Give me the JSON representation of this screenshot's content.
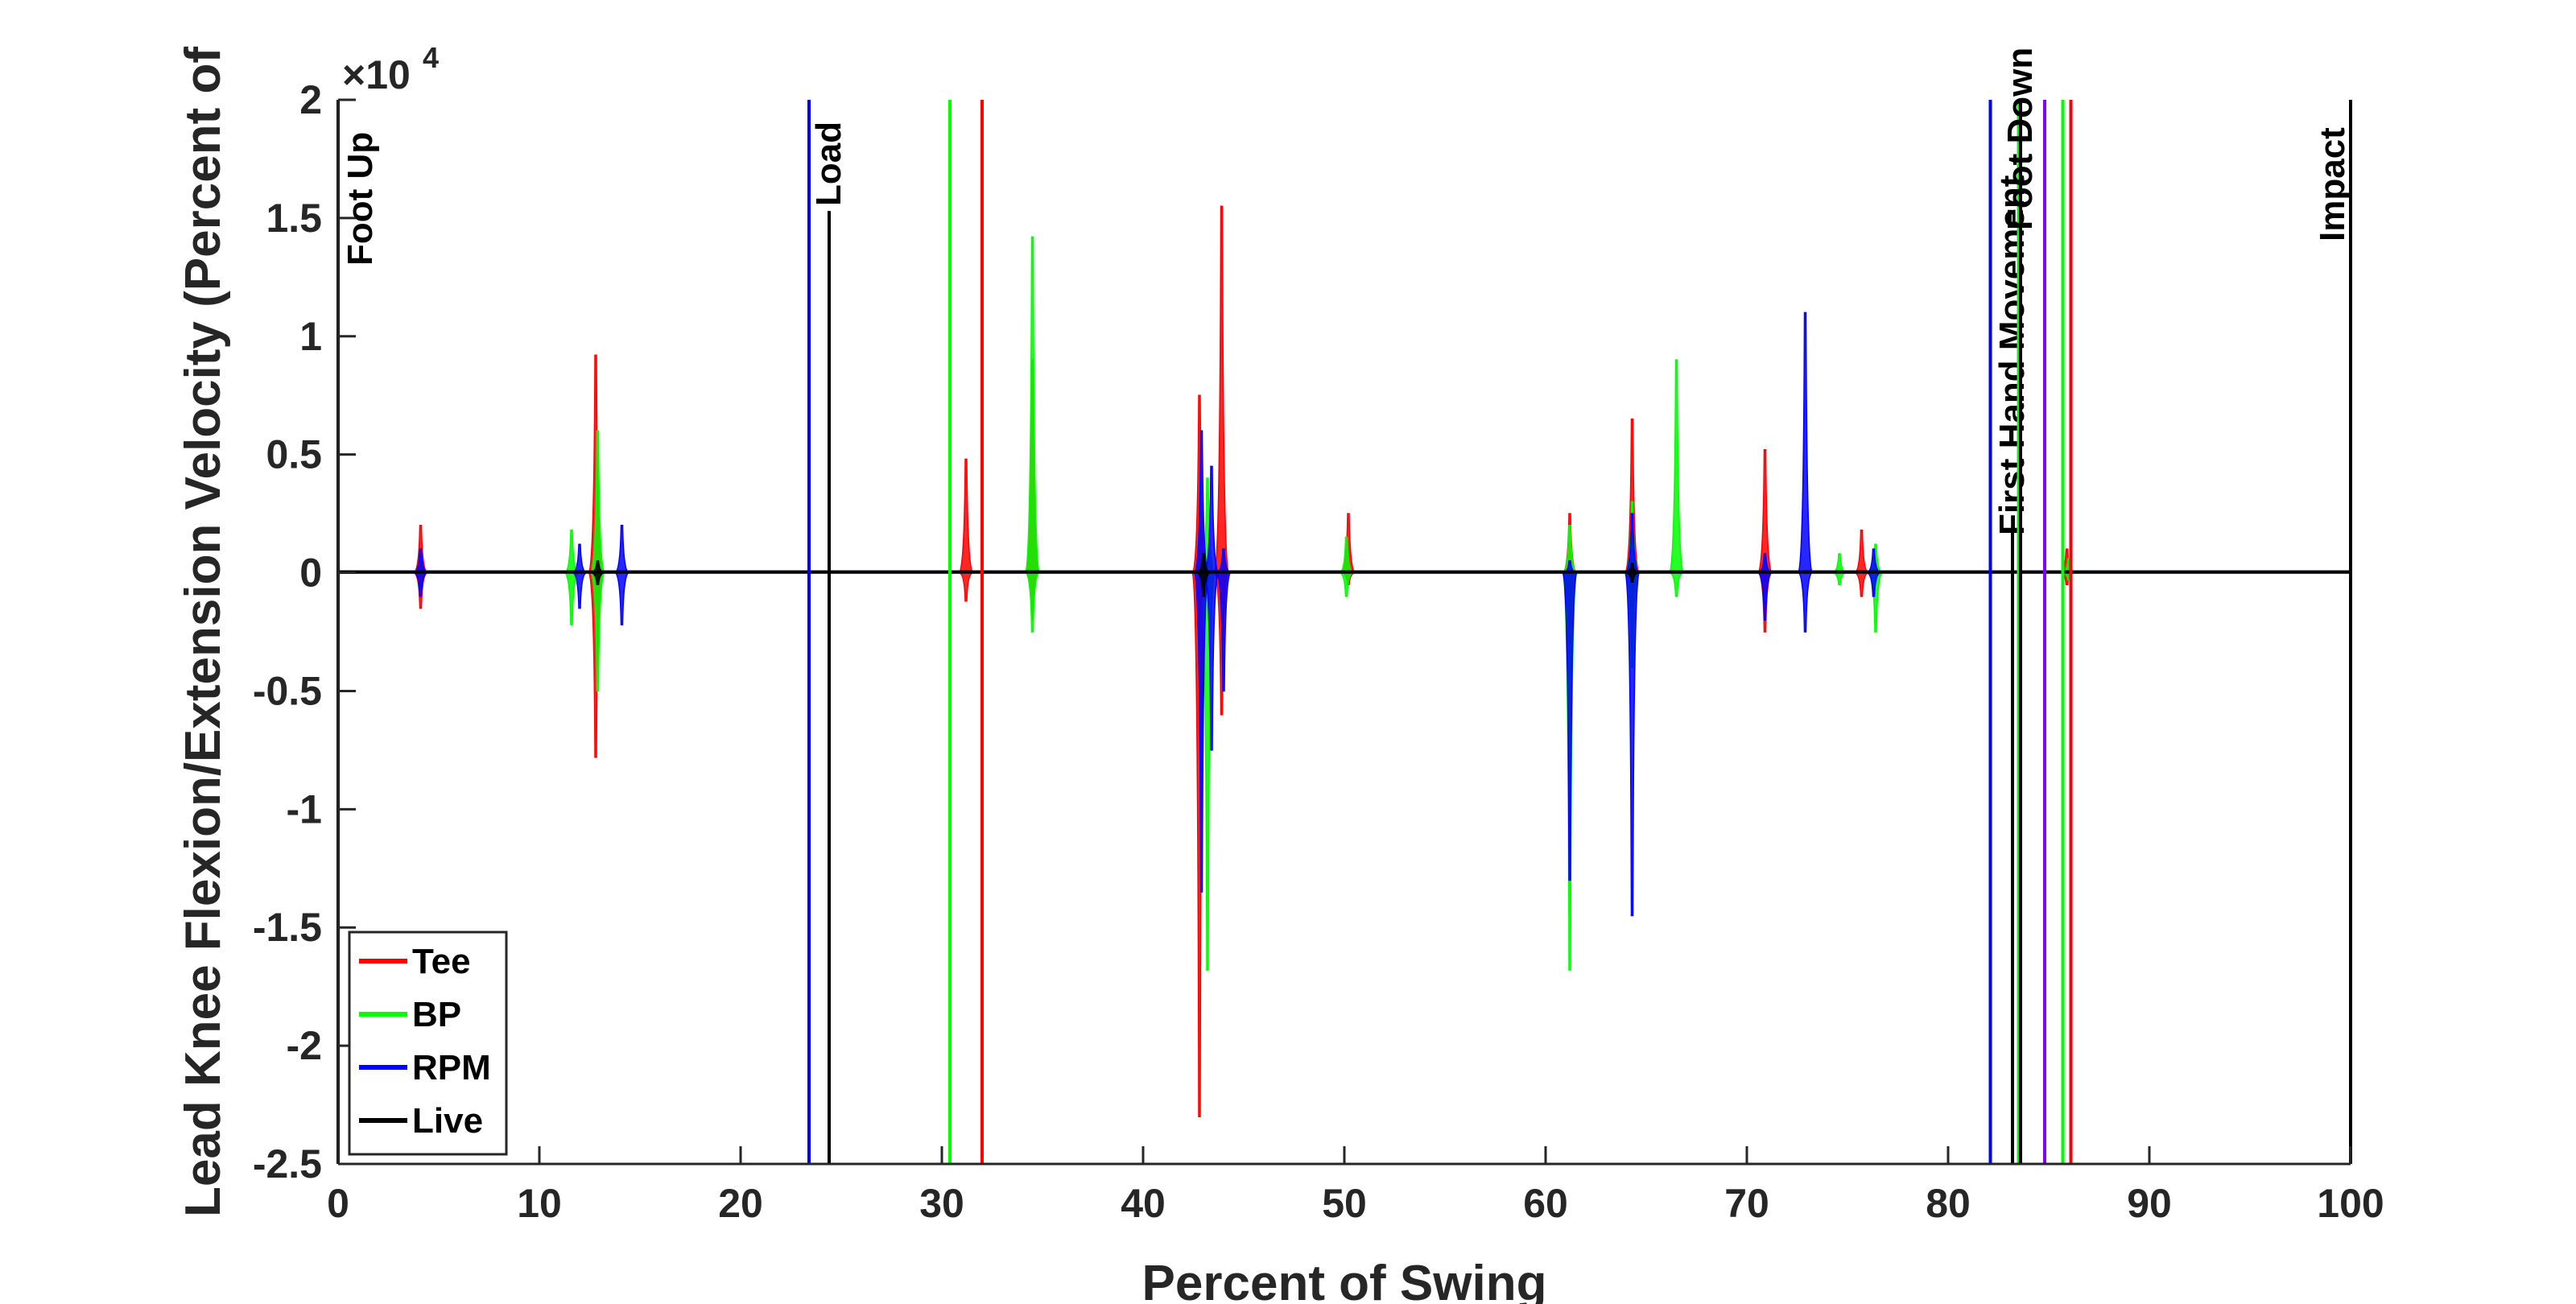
{
  "chart_data": {
    "type": "line",
    "xlabel": "Percent of Swing",
    "ylabel": "Lead Knee Flexion/Extension Velocity (Percent of",
    "xlim": [
      0,
      100
    ],
    "ylim": [
      -2.5,
      2
    ],
    "y_multiplier": "×10",
    "y_exponent": "4",
    "xticks": [
      0,
      10,
      20,
      30,
      40,
      50,
      60,
      70,
      80,
      90,
      100
    ],
    "yticks": [
      -2.5,
      -2,
      -1.5,
      -1,
      -0.5,
      0,
      0.5,
      1,
      1.5,
      2
    ],
    "xtick_labels": [
      "0",
      "10",
      "20",
      "30",
      "40",
      "50",
      "60",
      "70",
      "80",
      "90",
      "100"
    ],
    "ytick_labels": [
      "-2.5",
      "-2",
      "-1.5",
      "-1",
      "-0.5",
      "0",
      "0.5",
      "1",
      "1.5",
      "2"
    ],
    "legend_position": "bottom-left",
    "series": [
      {
        "name": "Tee",
        "color": "#ff0000",
        "spikes": [
          [
            4.1,
            0.2,
            -0.15
          ],
          [
            12.8,
            0.92,
            -0.78
          ],
          [
            31.2,
            0.48,
            -0.12
          ],
          [
            34.5,
            0.9,
            -0.2
          ],
          [
            42.8,
            0.75,
            -2.3
          ],
          [
            43.9,
            1.55,
            -0.6
          ],
          [
            50.2,
            0.25,
            -0.05
          ],
          [
            61.2,
            0.25,
            -0.3
          ],
          [
            64.3,
            0.65,
            -0.15
          ],
          [
            70.9,
            0.52,
            -0.25
          ],
          [
            75.7,
            0.18,
            -0.1
          ],
          [
            85.9,
            0.1,
            -0.05
          ]
        ]
      },
      {
        "name": "BP",
        "color": "#00ff00",
        "spikes": [
          [
            11.6,
            0.18,
            -0.22
          ],
          [
            12.9,
            0.6,
            -0.5
          ],
          [
            34.5,
            1.42,
            -0.25
          ],
          [
            43.2,
            0.4,
            -1.68
          ],
          [
            50.1,
            0.15,
            -0.1
          ],
          [
            61.2,
            0.2,
            -1.68
          ],
          [
            64.3,
            0.3,
            -0.4
          ],
          [
            66.5,
            0.9,
            -0.1
          ],
          [
            74.6,
            0.08,
            -0.05
          ],
          [
            76.4,
            0.12,
            -0.25
          ],
          [
            86.0,
            0.06,
            -0.03
          ]
        ]
      },
      {
        "name": "RPM",
        "color": "#0000ff",
        "spikes": [
          [
            4.1,
            0.1,
            -0.1
          ],
          [
            12.0,
            0.12,
            -0.15
          ],
          [
            14.1,
            0.2,
            -0.22
          ],
          [
            42.9,
            0.6,
            -1.35
          ],
          [
            43.4,
            0.45,
            -0.75
          ],
          [
            44.0,
            0.1,
            -0.5
          ],
          [
            61.2,
            0.05,
            -1.3
          ],
          [
            64.3,
            0.25,
            -1.45
          ],
          [
            70.9,
            0.08,
            -0.2
          ],
          [
            72.9,
            1.1,
            -0.25
          ],
          [
            76.3,
            0.1,
            -0.1
          ]
        ]
      },
      {
        "name": "Live",
        "color": "#000000",
        "spikes": [
          [
            12.9,
            0.05,
            -0.05
          ],
          [
            43.0,
            0.08,
            -0.1
          ],
          [
            64.3,
            0.04,
            -0.04
          ]
        ]
      }
    ],
    "event_lines": [
      {
        "x": 0.0,
        "color": "#000000",
        "label": "Foot Up"
      },
      {
        "x": 23.4,
        "color": "#0000ff",
        "label": ""
      },
      {
        "x": 24.4,
        "color": "#000000",
        "label": "Load",
        "y_top": 1.53
      },
      {
        "x": 30.4,
        "color": "#00ff00",
        "label": ""
      },
      {
        "x": 32.0,
        "color": "#ff0000",
        "label": ""
      },
      {
        "x": 82.1,
        "color": "#0000ff",
        "label": ""
      },
      {
        "x": 83.2,
        "color": "#000000",
        "label": "First Hand Movement",
        "y_top": 0.18
      },
      {
        "x": 83.5,
        "color": "#00ff00",
        "label": ""
      },
      {
        "x": 83.6,
        "color": "#000000",
        "label": "Foot Down"
      },
      {
        "x": 84.8,
        "color": "#8000ff",
        "label": ""
      },
      {
        "x": 85.7,
        "color": "#00ff00",
        "label": ""
      },
      {
        "x": 86.1,
        "color": "#ff0000",
        "label": ""
      },
      {
        "x": 100.0,
        "color": "#000000",
        "label": "Impact"
      }
    ]
  }
}
